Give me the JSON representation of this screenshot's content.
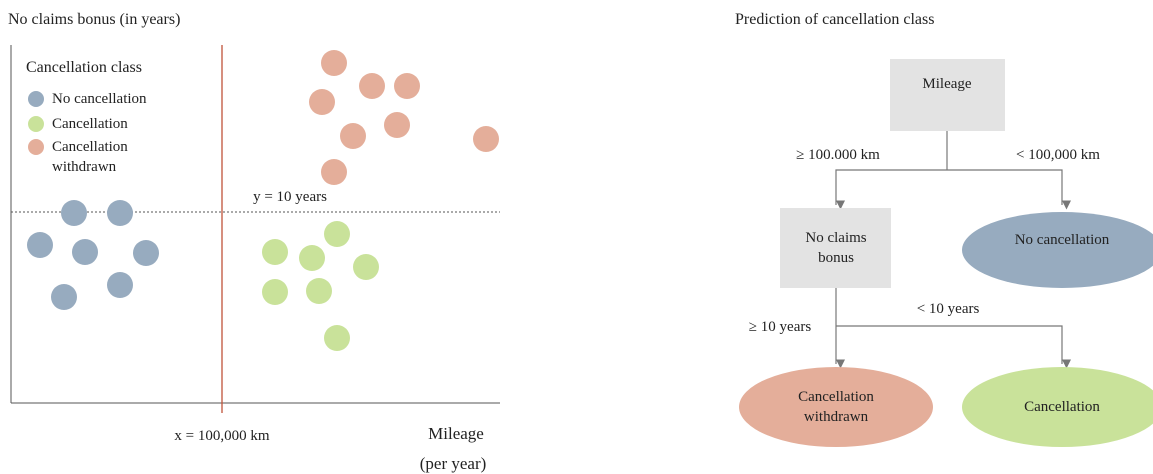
{
  "scatter": {
    "y_axis_label": "No claims bonus (in years)",
    "x_axis_label": [
      "Mileage",
      "(per year)"
    ],
    "legend": {
      "title": "Cancellation class",
      "items": [
        "No cancellation",
        "Cancellation",
        "Cancellation withdrawn"
      ]
    },
    "threshold_y_label": "y = 10 years",
    "threshold_x_label": "x = 100,000 km"
  },
  "tree": {
    "title": "Prediction of cancellation class",
    "nodes": [
      "Mileage",
      "No claims bonus",
      "No cancellation",
      "Cancellation withdrawn",
      "Cancellation"
    ],
    "edges": [
      "≥ 100.000 km",
      "< 100,000 km",
      "≥ 10 years",
      "< 10 years"
    ]
  }
}
